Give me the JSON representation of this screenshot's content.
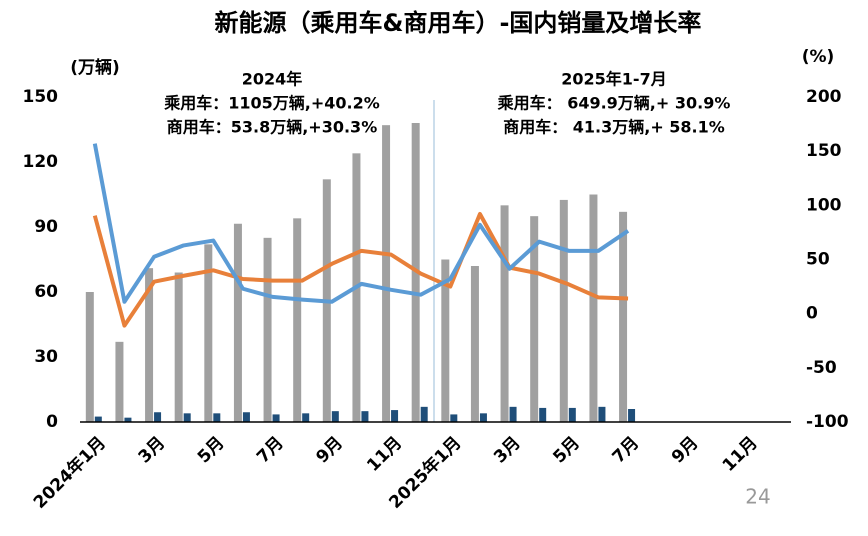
{
  "chart_data": {
    "type": "bar_line",
    "title": "新能源（乘用车&商用车）-国内销量及增长率",
    "page_number": "24",
    "y_label": "(万辆)",
    "y2_label": "(%)",
    "annotations": [
      [
        "2024年",
        "乘用车：1105万辆,+40.2%",
        "商用车：53.8万辆,+30.3%"
      ],
      [
        "2025年1-7月",
        "乘用车：  649.9万辆,+ 30.9%",
        "商用车：  41.3万辆,+ 58.1%"
      ]
    ],
    "categories": [
      "2024年1月",
      null,
      "3月",
      null,
      "5月",
      null,
      "7月",
      null,
      "9月",
      null,
      "11月",
      null,
      "2025年1月",
      null,
      "3月",
      null,
      "5月",
      null,
      "7月",
      null,
      "9月",
      null,
      "11月",
      null
    ],
    "ylim": [
      0,
      150
    ],
    "yticks": [
      0,
      30,
      60,
      90,
      120,
      150
    ],
    "y2lim": [
      -100,
      200
    ],
    "y2ticks": [
      -100,
      -50,
      0,
      50,
      100,
      150,
      200
    ],
    "series": [
      {
        "kind": "bar",
        "color": "#a0a0a0",
        "values": [
          60,
          37,
          71,
          69,
          82,
          91.5,
          85,
          94,
          112,
          124,
          137,
          138,
          75,
          72,
          100,
          95,
          102.5,
          105,
          97,
          null,
          null,
          null,
          null,
          null
        ]
      },
      {
        "kind": "bar",
        "color": "#1f4e79",
        "values": [
          2.5,
          2,
          4.5,
          4,
          4,
          4.5,
          3.5,
          4,
          5,
          5,
          5.5,
          7,
          3.5,
          4,
          7,
          6.5,
          6.5,
          7,
          6,
          null,
          null,
          null,
          null,
          null
        ]
      },
      {
        "kind": "line",
        "axis": "y2",
        "color": "#e8803a",
        "values": [
          90.5,
          -11,
          29.5,
          35,
          40,
          32,
          30.5,
          30.5,
          46,
          58,
          54.5,
          37,
          25,
          92,
          42.5,
          37,
          27,
          15,
          14,
          null,
          null,
          null,
          null,
          null
        ]
      },
      {
        "kind": "line",
        "axis": "y2",
        "color": "#5b9bd5",
        "values": [
          157,
          11,
          52.5,
          63,
          67.5,
          23,
          15.5,
          13,
          11,
          27.5,
          22,
          17.5,
          32,
          82,
          41.5,
          66.5,
          58,
          58,
          76.5,
          null,
          null,
          null,
          null,
          null
        ]
      }
    ]
  }
}
